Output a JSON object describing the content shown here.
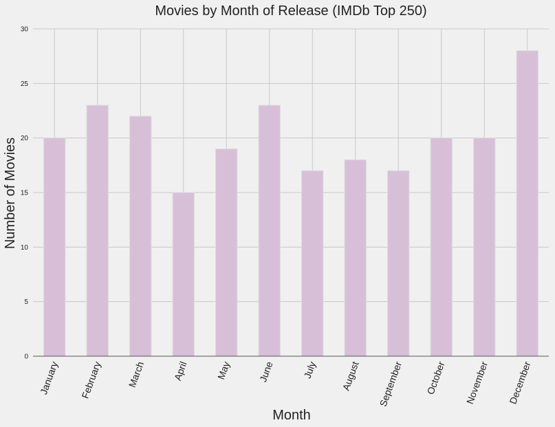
{
  "chart_data": {
    "type": "bar",
    "title": "Movies by Month of Release (IMDb Top 250)",
    "xlabel": "Month",
    "ylabel": "Number of Movies",
    "categories": [
      "January",
      "February",
      "March",
      "April",
      "May",
      "June",
      "July",
      "August",
      "September",
      "October",
      "November",
      "December"
    ],
    "values": [
      20,
      23,
      22,
      15,
      19,
      23,
      17,
      18,
      17,
      20,
      20,
      28
    ],
    "ylim": [
      0,
      30
    ],
    "yticks": [
      0,
      5,
      10,
      15,
      20,
      25,
      30
    ],
    "grid": true,
    "legend": "none",
    "bar_color": "#d8bfd8",
    "bar_edge_color": "#dcdcdc",
    "grid_color": "#c8c8c8",
    "background_color": "#f0f0f0"
  }
}
